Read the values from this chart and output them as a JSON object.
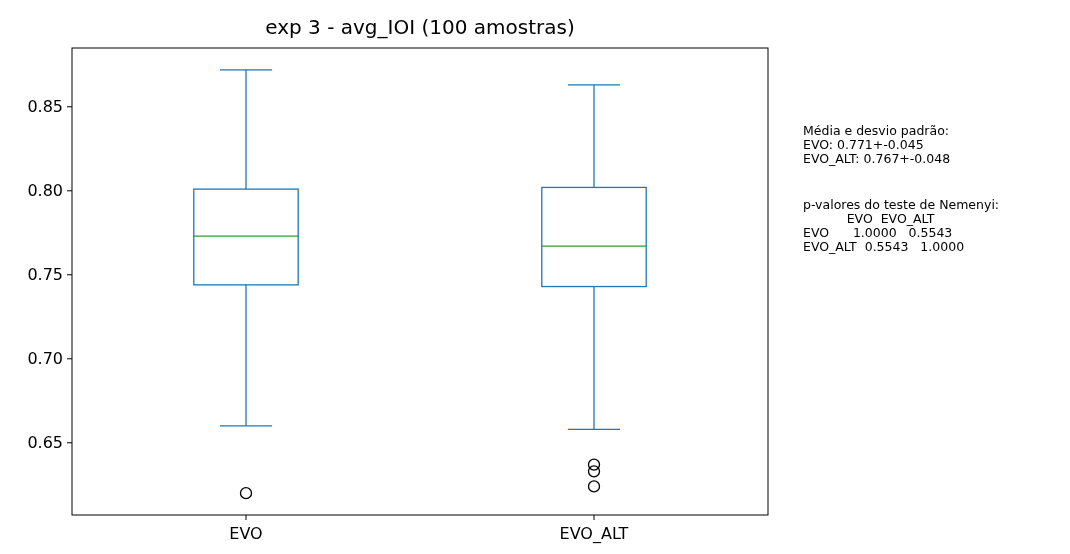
{
  "chart_data": {
    "type": "box",
    "title": "exp 3 - avg_IOI (100 amostras)",
    "categories": [
      "EVO",
      "EVO_ALT"
    ],
    "boxes": [
      {
        "low": 0.66,
        "q1": 0.744,
        "median": 0.773,
        "q3": 0.801,
        "high": 0.872,
        "outliers": [
          0.62
        ]
      },
      {
        "low": 0.658,
        "q1": 0.743,
        "median": 0.767,
        "q3": 0.802,
        "high": 0.863,
        "outliers": [
          0.637,
          0.633,
          0.624
        ]
      }
    ],
    "color": "#1f77b4",
    "ylim": [
      0.607,
      0.885
    ],
    "yticks": [
      0.65,
      {
        "value": 0.7,
        "label": "0.70"
      },
      0.75,
      {
        "value": 0.8,
        "label": "0.80"
      },
      0.85
    ],
    "grid": false,
    "annotations": [
      "Média e desvio padrão:\nEVO: 0.771+-0.045\nEVO_ALT: 0.767+-0.048",
      "p-valores do teste de Nemenyi:\n           EVO  EVO_ALT\nEVO      1.0000   0.5543\nEVO_ALT  0.5543   1.0000"
    ]
  }
}
